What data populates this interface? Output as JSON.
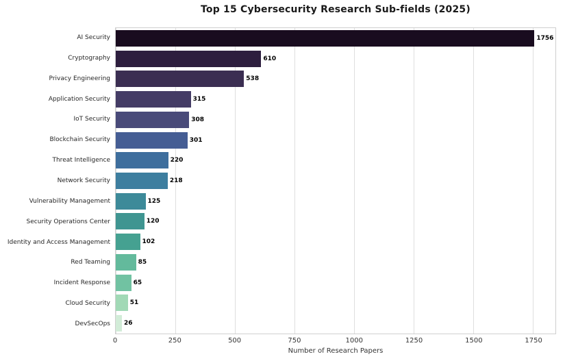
{
  "chart_data": {
    "type": "bar",
    "orientation": "horizontal",
    "title": "Top 15 Cybersecurity Research Sub-fields (2025)",
    "xlabel": "Number of Research Papers",
    "ylabel": "",
    "categories": [
      "AI Security",
      "Cryptography",
      "Privacy Engineering",
      "Application Security",
      "IoT Security",
      "Blockchain Security",
      "Threat Intelligence",
      "Network Security",
      "Vulnerability Management",
      "Security Operations Center",
      "Identity and Access Management",
      "Red Teaming",
      "Incident Response",
      "Cloud Security",
      "DevSecOps"
    ],
    "values": [
      1756,
      610,
      538,
      315,
      308,
      301,
      220,
      218,
      125,
      120,
      102,
      85,
      65,
      51,
      26
    ],
    "bar_colors": [
      "#190c1f",
      "#2d1e3e",
      "#3b2e52",
      "#443c65",
      "#494a79",
      "#455d94",
      "#3e6e9d",
      "#3d7e9f",
      "#3d8a99",
      "#3f9591",
      "#45a191",
      "#63ba9c",
      "#71c2a2",
      "#a1d9b6",
      "#d2ecd8"
    ],
    "x_ticks": [
      0,
      250,
      500,
      750,
      1000,
      1250,
      1500,
      1750
    ],
    "xlim": [
      0,
      1844
    ],
    "grid": "vertical",
    "grid_color": "#dedede",
    "spine_color": "#cfcfcf",
    "category_label_color": "#262626",
    "tick_label_color": "#333333",
    "value_label_color": "#000000",
    "background_color": "#ffffff",
    "legend": "none"
  }
}
